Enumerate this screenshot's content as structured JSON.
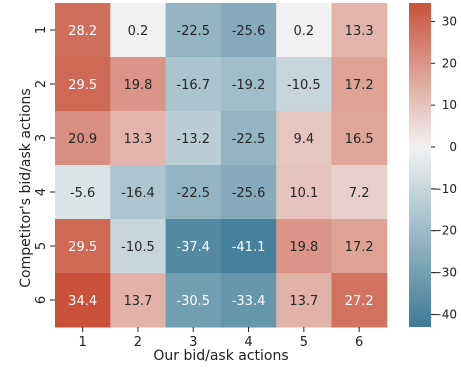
{
  "chart_data": {
    "type": "heatmap",
    "xlabel": "Our bid/ask actions",
    "ylabel": "Competitor's bid/ask actions",
    "x_categories": [
      "1",
      "2",
      "3",
      "4",
      "5",
      "6"
    ],
    "y_categories": [
      "1",
      "2",
      "3",
      "4",
      "5",
      "6"
    ],
    "values": [
      [
        28.2,
        0.2,
        -22.5,
        -25.6,
        0.2,
        13.3
      ],
      [
        29.5,
        19.8,
        -16.7,
        -19.2,
        -10.5,
        17.2
      ],
      [
        20.9,
        13.3,
        -13.2,
        -22.5,
        9.4,
        16.5
      ],
      [
        -5.6,
        -16.4,
        -22.5,
        -25.6,
        10.1,
        7.2
      ],
      [
        29.5,
        -10.5,
        -37.4,
        -41.1,
        19.8,
        17.2
      ],
      [
        34.4,
        13.7,
        -30.5,
        -33.4,
        13.7,
        27.2
      ]
    ],
    "colorbar": {
      "min": -43,
      "max": 34.4,
      "ticks": [
        30,
        20,
        10,
        0,
        -10,
        -20,
        -30,
        -40
      ],
      "negative_color": "#3d7b98",
      "center_color": "#f2f2f2",
      "positive_color": "#c9513a"
    }
  }
}
